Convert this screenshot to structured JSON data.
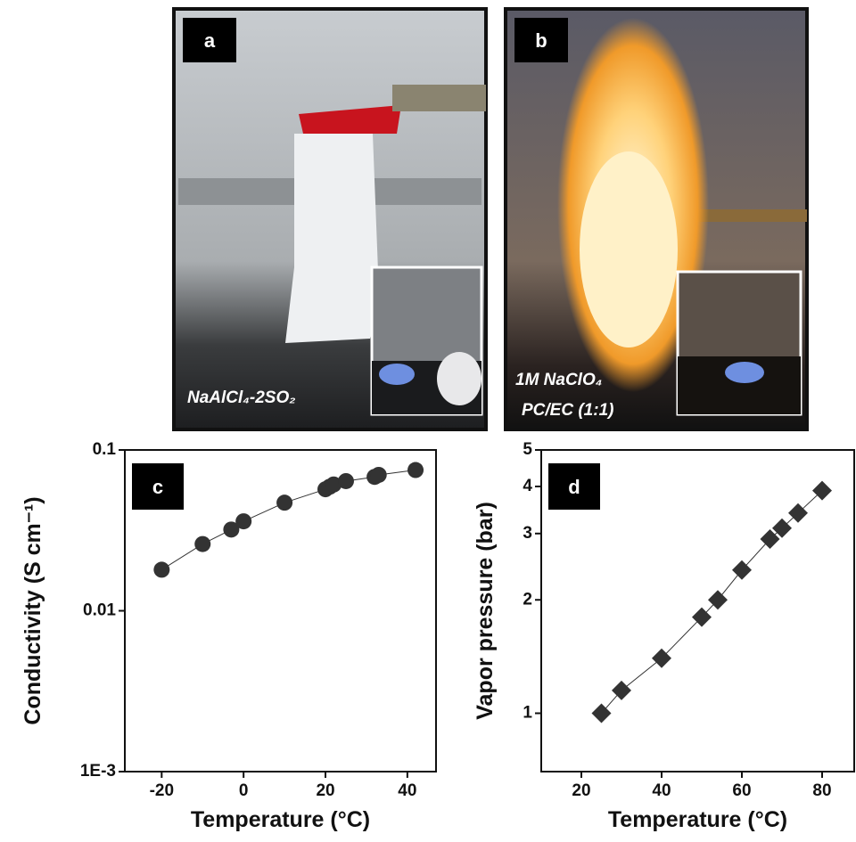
{
  "photos": [
    {
      "label": "a",
      "caption": [
        "NaAlCl₄-2SO₂"
      ]
    },
    {
      "label": "b",
      "caption": [
        "1M NaClO₄",
        "PC/EC (1:1)"
      ]
    }
  ],
  "chart_data": [
    {
      "type": "scatter",
      "panel": "c",
      "x_label": "Temperature (°C)",
      "y_label": "Conductivity (S cm⁻¹)",
      "x": [
        -20,
        -10,
        -3,
        0,
        10,
        20,
        21,
        22,
        25,
        32,
        33,
        42
      ],
      "values": [
        0.018,
        0.026,
        0.032,
        0.036,
        0.047,
        0.057,
        0.059,
        0.061,
        0.064,
        0.068,
        0.07,
        0.075
      ],
      "marker": "circle",
      "color": "#333333",
      "connect": true,
      "xlim": [
        -29,
        47
      ],
      "xticks": [
        -20,
        0,
        20,
        40
      ],
      "ylim": [
        0.001,
        0.1
      ],
      "yticks": [
        0.1,
        0.01,
        {
          "value": 0.001,
          "label": "1E-3"
        }
      ],
      "y_scale": "log"
    },
    {
      "type": "scatter",
      "panel": "d",
      "x_label": "Temperature (°C)",
      "y_label": "Vapor pressure (bar)",
      "x": [
        25,
        30,
        40,
        50,
        54,
        60,
        67,
        70,
        74,
        80
      ],
      "values": [
        1.0,
        1.15,
        1.4,
        1.8,
        2.0,
        2.4,
        2.9,
        3.1,
        3.4,
        3.9
      ],
      "marker": "diamond",
      "color": "#333333",
      "connect": true,
      "xlim": [
        10,
        88
      ],
      "xticks": [
        20,
        40,
        60,
        80
      ],
      "ylim": [
        0.7,
        5
      ],
      "yticks": [
        1,
        2,
        3,
        4,
        5
      ],
      "y_scale": "log"
    }
  ]
}
